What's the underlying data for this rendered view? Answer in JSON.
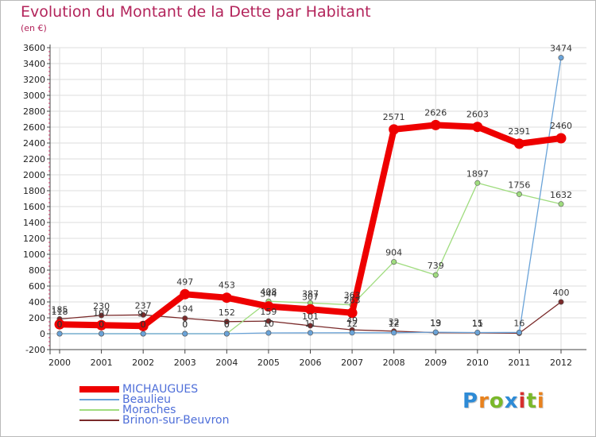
{
  "title": "Evolution du Montant de la Dette par Habitant",
  "unit": "(en €)",
  "logo": {
    "text": "Proxiti",
    "colors": [
      "#2e8bd6",
      "#e8821e",
      "#7ab82a",
      "#2e8bd6",
      "#d6302e",
      "#7ab82a",
      "#e8821e"
    ]
  },
  "chart_data": {
    "type": "line",
    "title": "Evolution du Montant de la Dette par Habitant",
    "ylabel": "(en €)",
    "xlabel": "",
    "ylim": [
      -200,
      3600
    ],
    "ytick_step": 200,
    "yticks": [
      "-200",
      "0",
      "200",
      "400",
      "600",
      "800",
      "1000",
      "1200",
      "1400",
      "1600",
      "1800",
      "2000",
      "2200",
      "2400",
      "2600",
      "2800",
      "3000",
      "3200",
      "3400",
      "3600"
    ],
    "categories": [
      "2000",
      "2001",
      "2002",
      "2003",
      "2004",
      "2005",
      "2006",
      "2007",
      "2008",
      "2009",
      "2010",
      "2011",
      "2012"
    ],
    "grid": true,
    "series": [
      {
        "name": "MICHAUGUES",
        "color": "#ee0000",
        "values": [
          118,
          107,
          97,
          497,
          453,
          344,
          307,
          263,
          2571,
          2626,
          2603,
          2391,
          2460
        ],
        "labels": [
          "118",
          "107",
          "97",
          "497",
          "453",
          "344",
          "307",
          "263",
          "2571",
          "2626",
          "2603",
          "2391",
          "2460"
        ]
      },
      {
        "name": "Beaulieu",
        "color": "#6aa3d8",
        "values": [
          0,
          0,
          0,
          0,
          0,
          10,
          11,
          12,
          12,
          19,
          15,
          16,
          3474
        ],
        "labels": [
          "0",
          "0",
          "0",
          "0",
          "0",
          "10",
          "11",
          "12",
          "12",
          "19",
          "15",
          "16",
          "3474"
        ]
      },
      {
        "name": "Moraches",
        "color": "#9fdc7e",
        "values": [
          0,
          0,
          0,
          0,
          0,
          408,
          387,
          363,
          904,
          739,
          1897,
          1756,
          1632
        ],
        "labels": [
          "0",
          "0",
          "0",
          "0",
          "0",
          "408",
          "387",
          "363",
          "904",
          "739",
          "1897",
          "1756",
          "1632"
        ]
      },
      {
        "name": "Brinon-sur-Beuvron",
        "color": "#7a2a2a",
        "values": [
          185,
          230,
          237,
          194,
          152,
          159,
          101,
          49,
          32,
          13,
          11,
          6,
          400
        ],
        "labels": [
          "185",
          "230",
          "237",
          "194",
          "152",
          "159",
          "101",
          "49",
          "32",
          "13",
          "11",
          "",
          "400"
        ]
      }
    ]
  }
}
